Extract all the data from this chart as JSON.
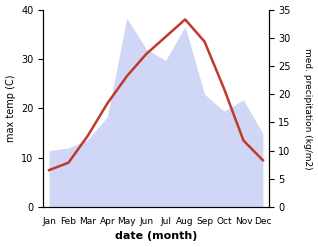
{
  "months": [
    "Jan",
    "Feb",
    "Mar",
    "Apr",
    "May",
    "Jun",
    "Jul",
    "Aug",
    "Sep",
    "Oct",
    "Nov",
    "Dec"
  ],
  "temp": [
    7.5,
    9.0,
    14.5,
    21.0,
    26.5,
    31.0,
    34.5,
    38.0,
    33.5,
    24.0,
    13.5,
    9.5
  ],
  "precip": [
    10.0,
    10.5,
    12.0,
    16.0,
    33.5,
    28.0,
    26.0,
    32.0,
    20.0,
    17.0,
    19.0,
    13.0
  ],
  "temp_color": "#c0392b",
  "precip_fill_color": "#c8d0f5",
  "precip_fill_alpha": 0.85,
  "temp_ylim": [
    0,
    40
  ],
  "precip_ylim": [
    0,
    35
  ],
  "xlabel": "date (month)",
  "ylabel_left": "max temp (C)",
  "ylabel_right": "med. precipitation (kg/m2)",
  "temp_yticks": [
    0,
    10,
    20,
    30,
    40
  ],
  "precip_yticks": [
    0,
    5,
    10,
    15,
    20,
    25,
    30,
    35
  ],
  "temp_linewidth": 1.8,
  "tick_labelsize": 7,
  "ylabel_fontsize": 7,
  "xlabel_fontsize": 8
}
